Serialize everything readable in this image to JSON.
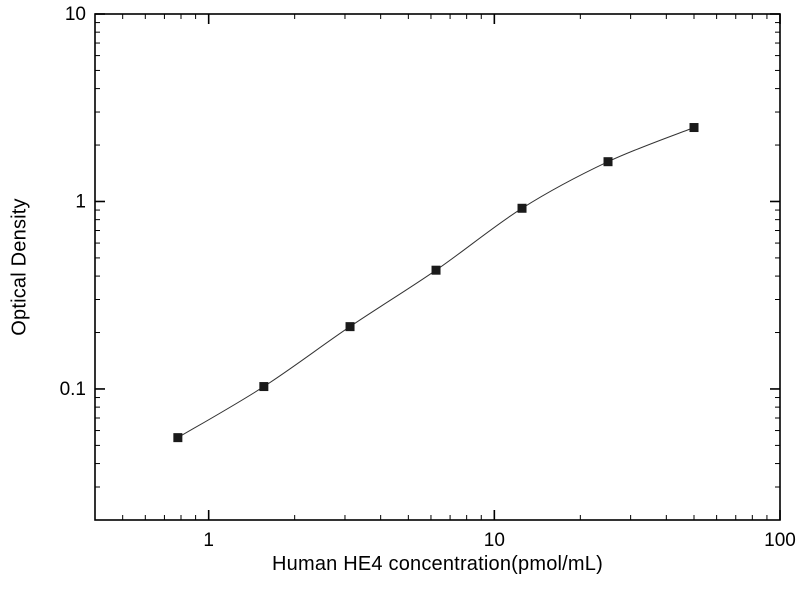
{
  "page": {
    "background_color": "#ffffff",
    "foreground_color": "#000000"
  },
  "chart_data": {
    "type": "scatter",
    "title": "",
    "xlabel": "Human HE4 concentration(pmol/mL)",
    "ylabel": "Optical Density",
    "x_scale": "log",
    "y_scale": "log",
    "xlim": [
      0.4,
      100
    ],
    "ylim": [
      0.02,
      10
    ],
    "x_ticks": [
      1,
      10,
      100
    ],
    "y_ticks": [
      0.1,
      1,
      10
    ],
    "x": [
      0.78,
      1.56,
      3.125,
      6.25,
      12.5,
      25,
      50
    ],
    "y": [
      0.055,
      0.103,
      0.215,
      0.43,
      0.92,
      1.63,
      2.48
    ],
    "marker": "square",
    "marker_color": "#1a1a1a",
    "marker_size": 9,
    "line_color": "#333333",
    "grid": false,
    "legend": "none"
  }
}
